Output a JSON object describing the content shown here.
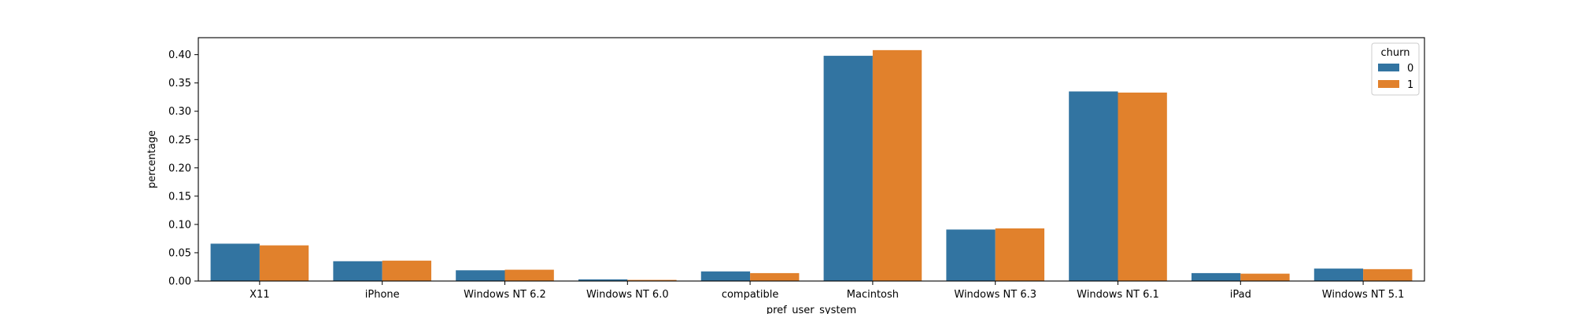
{
  "chart_data": {
    "type": "bar",
    "xlabel": "pref_user_system",
    "ylabel": "percentage",
    "categories": [
      "X11",
      "iPhone",
      "Windows NT 6.2",
      "Windows NT 6.0",
      "compatible",
      "Macintosh",
      "Windows NT 6.3",
      "Windows NT 6.1",
      "iPad",
      "Windows NT 5.1"
    ],
    "series": [
      {
        "name": "0",
        "color": "#3274a1",
        "values": [
          0.066,
          0.035,
          0.019,
          0.003,
          0.017,
          0.398,
          0.091,
          0.335,
          0.014,
          0.022
        ]
      },
      {
        "name": "1",
        "color": "#e1812c",
        "values": [
          0.063,
          0.036,
          0.02,
          0.002,
          0.014,
          0.408,
          0.093,
          0.333,
          0.013,
          0.021
        ]
      }
    ],
    "ylim": [
      0,
      0.43
    ],
    "yticks": [
      "0.00",
      "0.05",
      "0.10",
      "0.15",
      "0.20",
      "0.25",
      "0.30",
      "0.35",
      "0.40"
    ],
    "legend": {
      "title": "churn",
      "placement": "top-right"
    },
    "grid": false
  }
}
